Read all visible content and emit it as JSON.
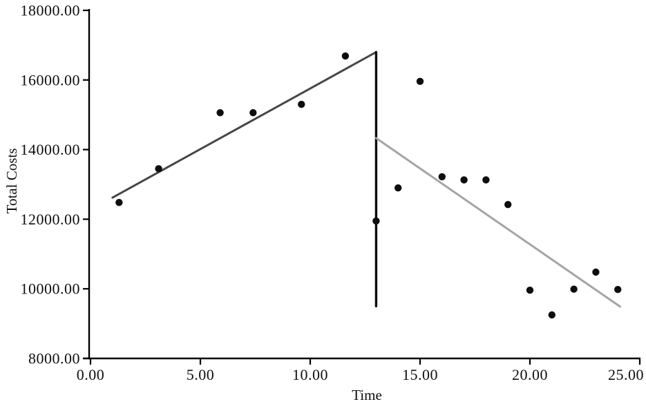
{
  "figure": {
    "background": "#ffffff"
  },
  "chart_data": {
    "type": "scatter",
    "title": "",
    "xlabel": "Time",
    "ylabel": "Total Costs",
    "xlim": [
      0,
      25
    ],
    "ylim": [
      8000,
      18000
    ],
    "x_ticks": [
      0,
      5,
      10,
      15,
      20,
      25
    ],
    "y_ticks": [
      8000,
      10000,
      12000,
      14000,
      16000,
      18000
    ],
    "tick_decimals": 2,
    "grid": false,
    "legend": "none",
    "axis_color": "#000000",
    "point_color": "#0e0e0e",
    "point_radius": 5.2,
    "points": [
      {
        "x": 1.3,
        "y": 12480
      },
      {
        "x": 3.1,
        "y": 13450
      },
      {
        "x": 5.9,
        "y": 15060
      },
      {
        "x": 7.4,
        "y": 15060
      },
      {
        "x": 9.6,
        "y": 15300
      },
      {
        "x": 11.6,
        "y": 16690
      },
      {
        "x": 13.0,
        "y": 11950
      },
      {
        "x": 14.0,
        "y": 12900
      },
      {
        "x": 15.0,
        "y": 15960
      },
      {
        "x": 16.0,
        "y": 13220
      },
      {
        "x": 17.0,
        "y": 13130
      },
      {
        "x": 18.0,
        "y": 13130
      },
      {
        "x": 19.0,
        "y": 12420
      },
      {
        "x": 20.0,
        "y": 9960
      },
      {
        "x": 21.0,
        "y": 9250
      },
      {
        "x": 22.0,
        "y": 9990
      },
      {
        "x": 23.0,
        "y": 10480
      },
      {
        "x": 24.0,
        "y": 9980
      }
    ],
    "segments": [
      {
        "name": "rising-trend-line",
        "x1": 1.0,
        "y1": 12620,
        "x2": 13.0,
        "y2": 16800,
        "color": "#464646",
        "width": 3
      },
      {
        "name": "level-drop-line",
        "x1": 13.0,
        "y1": 16800,
        "x2": 13.0,
        "y2": 9500,
        "color": "#0b0b0b",
        "width": 3.4
      },
      {
        "name": "falling-trend-line",
        "x1": 13.0,
        "y1": 14330,
        "x2": 24.1,
        "y2": 9490,
        "color": "#a4a4a4",
        "width": 3
      }
    ]
  }
}
